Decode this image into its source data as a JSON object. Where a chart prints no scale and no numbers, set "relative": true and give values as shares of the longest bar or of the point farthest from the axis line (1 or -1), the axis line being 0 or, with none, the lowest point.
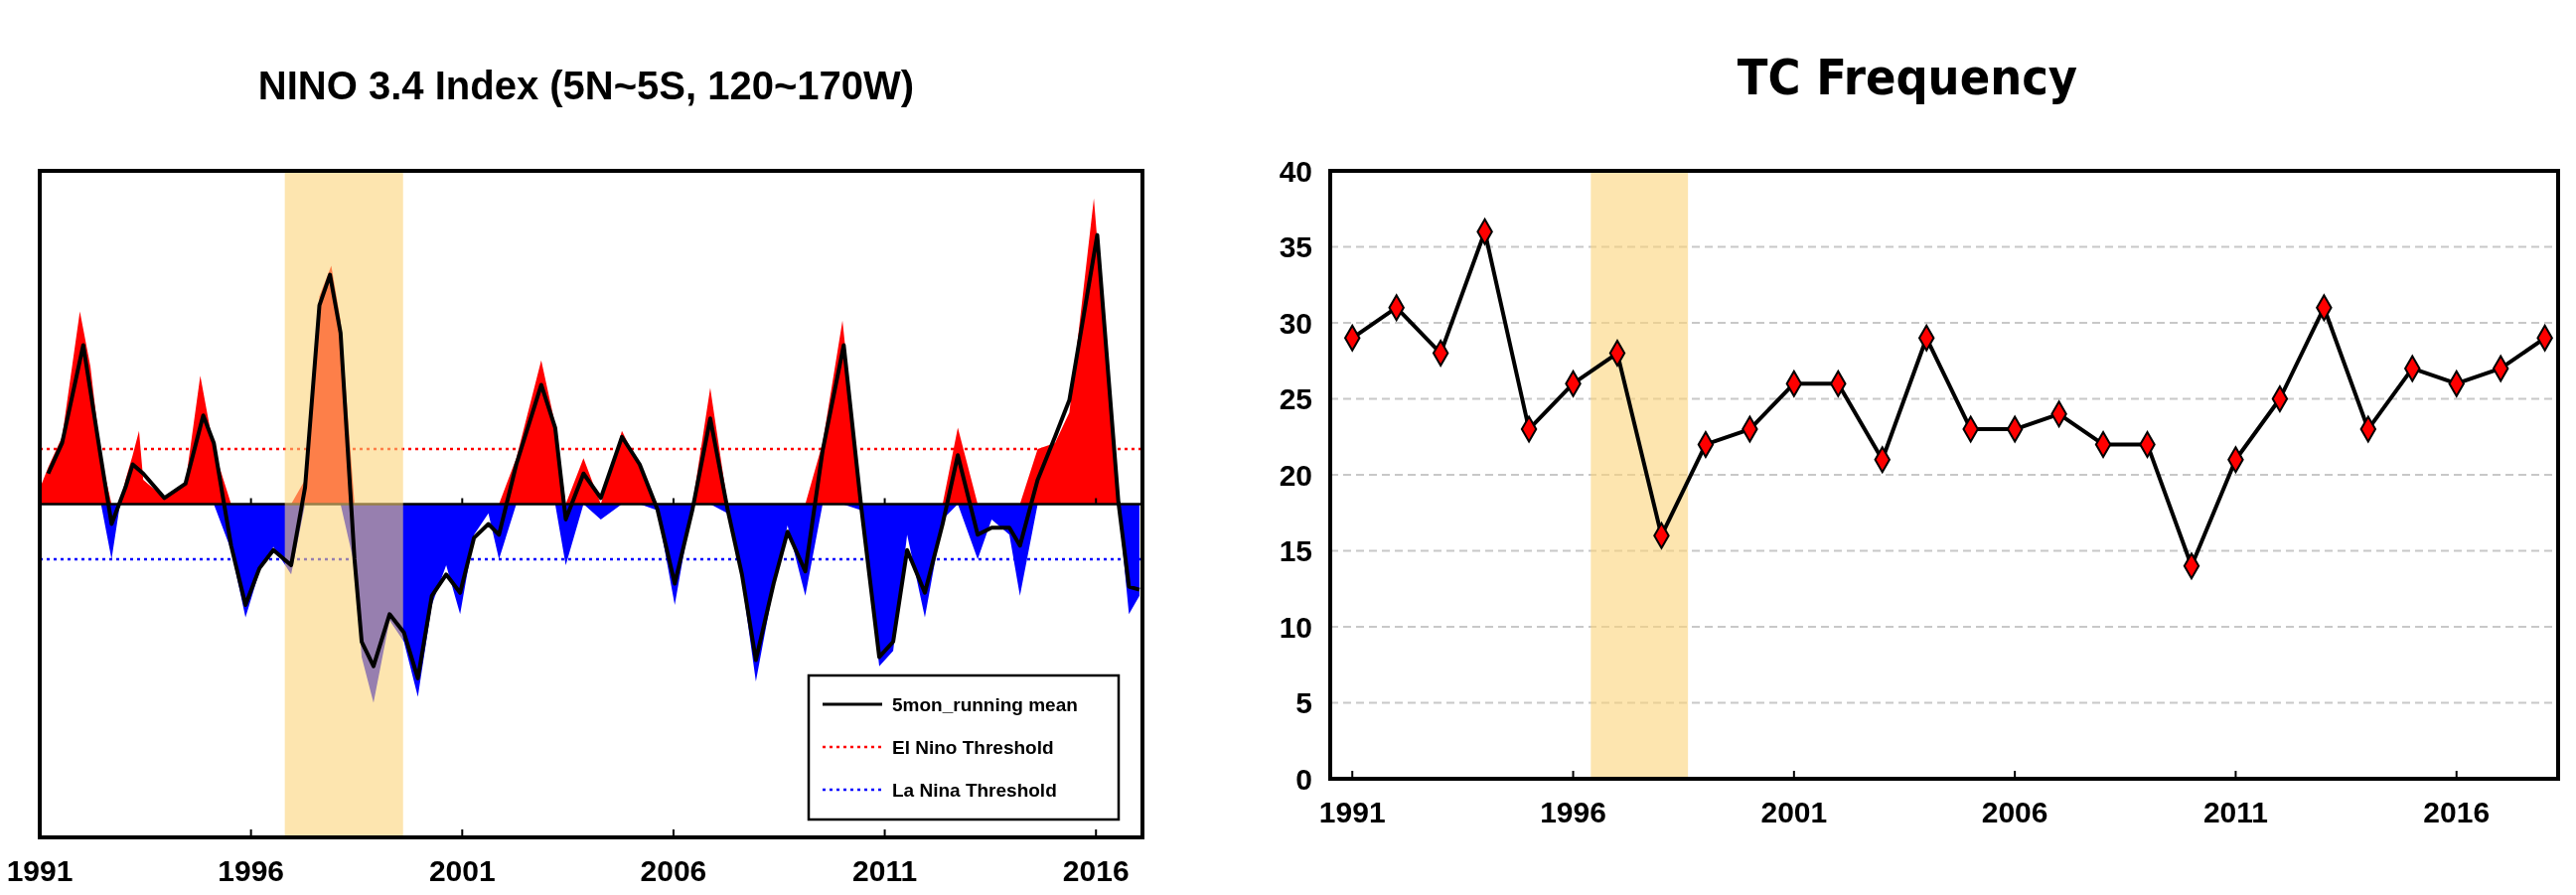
{
  "chart_data": [
    {
      "type": "area",
      "title": "NINO 3.4 Index (5N~5S, 120~170W)",
      "relative": true,
      "xlim": [
        1991,
        2017.1
      ],
      "xticks": [
        1991,
        1996,
        2001,
        2006,
        2011,
        2016
      ],
      "legend": "bottom right",
      "series": [
        {
          "color": "#ff0000",
          "x": [
            1991.0,
            1991.2,
            1991.53,
            1991.95,
            1992.2,
            1992.45,
            1992.7,
            1992.9,
            1993.03,
            1993.2,
            1993.35,
            1993.45,
            1993.95,
            1994.45,
            1994.8,
            1995.12,
            1995.53,
            1995.87,
            1996.2,
            1996.53,
            1996.95,
            1997.28,
            1997.62,
            1997.9,
            1998.12,
            1998.45,
            1998.62,
            1998.9,
            1999.28,
            1999.62,
            1999.95,
            2000.28,
            2000.62,
            2000.95,
            2001.28,
            2001.62,
            2001.87,
            2002.28,
            2002.87,
            2003.2,
            2003.45,
            2003.87,
            2004.28,
            2004.78,
            2005.2,
            2005.62,
            2006.03,
            2006.45,
            2006.87,
            2007.28,
            2007.62,
            2007.95,
            2008.37,
            2008.7,
            2009.12,
            2009.53,
            2010.0,
            2010.45,
            2010.87,
            2011.2,
            2011.53,
            2011.95,
            2012.37,
            2012.73,
            2013.2,
            2013.53,
            2013.95,
            2014.2,
            2014.62,
            2015.03,
            2015.37,
            2015.95,
            2016.53,
            2016.78,
            2017.03
          ],
          "values": [
            0.05,
            0.12,
            0.22,
            0.63,
            0.45,
            0.15,
            0,
            0,
            0.08,
            0.16,
            0.24,
            0.08,
            0.02,
            0.07,
            0.42,
            0.18,
            0,
            0,
            0,
            0,
            0,
            0.08,
            0.68,
            0.78,
            0.6,
            0,
            0,
            0,
            0,
            0,
            0,
            0,
            0,
            0,
            0,
            0,
            0,
            0.15,
            0.47,
            0.26,
            0,
            0.15,
            0,
            0.24,
            0.12,
            0,
            0,
            0,
            0.38,
            0,
            0,
            0,
            0,
            0,
            0,
            0.2,
            0.6,
            0,
            0,
            0,
            0,
            0,
            0,
            0.25,
            0,
            0,
            0,
            0,
            0.18,
            0.2,
            0.3,
            1.0,
            0,
            0,
            0
          ]
        },
        {
          "color": "#0000ff",
          "x": [
            1991.0,
            1991.2,
            1991.53,
            1991.95,
            1992.2,
            1992.45,
            1992.7,
            1992.9,
            1993.03,
            1993.2,
            1993.35,
            1993.45,
            1993.95,
            1994.45,
            1994.8,
            1995.12,
            1995.53,
            1995.87,
            1996.2,
            1996.53,
            1996.95,
            1997.28,
            1997.62,
            1997.9,
            1998.12,
            1998.45,
            1998.62,
            1998.9,
            1999.28,
            1999.62,
            1999.95,
            2000.28,
            2000.62,
            2000.95,
            2001.28,
            2001.62,
            2001.87,
            2002.28,
            2002.87,
            2003.2,
            2003.45,
            2003.87,
            2004.28,
            2004.78,
            2005.2,
            2005.62,
            2006.03,
            2006.45,
            2006.87,
            2007.28,
            2007.62,
            2007.95,
            2008.37,
            2008.7,
            2009.12,
            2009.53,
            2010.0,
            2010.45,
            2010.87,
            2011.2,
            2011.53,
            2011.95,
            2012.37,
            2012.73,
            2013.2,
            2013.53,
            2013.95,
            2014.2,
            2014.62,
            2015.03,
            2015.37,
            2015.95,
            2016.53,
            2016.78,
            2017.03
          ],
          "values": [
            0,
            0,
            0,
            0,
            0,
            0,
            -0.18,
            0,
            0,
            0,
            0,
            0,
            0,
            0,
            0,
            0,
            -0.15,
            -0.37,
            -0.22,
            -0.14,
            -0.23,
            0,
            0,
            0,
            0,
            -0.2,
            -0.5,
            -0.65,
            -0.38,
            -0.45,
            -0.63,
            -0.33,
            -0.2,
            -0.36,
            -0.1,
            -0.03,
            -0.18,
            0,
            0,
            0,
            -0.2,
            0,
            -0.05,
            0,
            0,
            -0.02,
            -0.33,
            0,
            0,
            -0.03,
            -0.25,
            -0.58,
            -0.27,
            -0.07,
            -0.3,
            0,
            0,
            -0.02,
            -0.53,
            -0.48,
            -0.1,
            -0.37,
            -0.05,
            0,
            -0.18,
            -0.05,
            -0.1,
            -0.3,
            0,
            0,
            0,
            0,
            0,
            -0.36,
            -0.3
          ]
        },
        {
          "type": "line",
          "name": "5mon_running mean",
          "color": "#000000",
          "x": [
            1991.2,
            1991.53,
            1992.03,
            1992.45,
            1992.7,
            1993.03,
            1993.2,
            1993.45,
            1993.95,
            1994.45,
            1994.87,
            1995.12,
            1995.53,
            1995.87,
            1996.2,
            1996.53,
            1996.95,
            1997.28,
            1997.62,
            1997.87,
            1998.12,
            1998.45,
            1998.62,
            1998.9,
            1999.28,
            1999.62,
            1999.95,
            2000.28,
            2000.62,
            2000.95,
            2001.28,
            2001.62,
            2001.87,
            2002.28,
            2002.87,
            2003.2,
            2003.45,
            2003.87,
            2004.28,
            2004.78,
            2005.2,
            2005.62,
            2006.03,
            2006.45,
            2006.87,
            2007.28,
            2007.62,
            2007.95,
            2008.37,
            2008.7,
            2009.12,
            2009.53,
            2010.03,
            2010.45,
            2010.87,
            2011.2,
            2011.53,
            2011.95,
            2012.37,
            2012.73,
            2013.2,
            2013.53,
            2013.95,
            2014.2,
            2014.62,
            2015.03,
            2015.37,
            2016.03,
            2016.53,
            2016.78,
            2017.03
          ],
          "values": [
            0.1,
            0.2,
            0.52,
            0.15,
            -0.065,
            0.055,
            0.13,
            0.1,
            0.02,
            0.067,
            0.29,
            0.2,
            -0.136,
            -0.33,
            -0.21,
            -0.15,
            -0.2,
            0.055,
            0.65,
            0.75,
            0.56,
            -0.18,
            -0.45,
            -0.53,
            -0.36,
            -0.42,
            -0.57,
            -0.3,
            -0.23,
            -0.29,
            -0.11,
            -0.065,
            -0.1,
            0.13,
            0.39,
            0.25,
            -0.05,
            0.1,
            0.02,
            0.22,
            0.13,
            -0.017,
            -0.26,
            -0.017,
            0.28,
            -0.017,
            -0.23,
            -0.51,
            -0.26,
            -0.09,
            -0.22,
            0.175,
            0.52,
            -0.017,
            -0.5,
            -0.45,
            -0.15,
            -0.29,
            -0.065,
            0.16,
            -0.1,
            -0.077,
            -0.077,
            -0.136,
            0.08,
            0.22,
            0.34,
            0.88,
            0.007,
            -0.27,
            -0.28
          ]
        }
      ],
      "ref_lines": [
        {
          "axis": "y",
          "value": 0.18,
          "label": "El Nino Threshold",
          "color": "#ff0000",
          "line_style": "dotted"
        },
        {
          "axis": "y",
          "value": -0.18,
          "label": "La Nina Threshold",
          "color": "#0000ff",
          "line_style": "dotted"
        }
      ],
      "bands": [
        {
          "axis": "x",
          "from": 1996.8,
          "to": 1999.6,
          "color": "#fcd37a"
        }
      ]
    },
    {
      "type": "line",
      "title": "TC Frequency",
      "xlim": [
        1990.5,
        2018.3
      ],
      "xticks": [
        1991,
        1996,
        2001,
        2006,
        2011,
        2016
      ],
      "ylim": [
        0,
        40
      ],
      "yticks": [
        0,
        5,
        10,
        15,
        20,
        25,
        30,
        35,
        40
      ],
      "grid": "y",
      "series": [
        {
          "color": "#000000",
          "marker": "none",
          "x": [
            1991,
            1992,
            1993,
            1994,
            1995,
            1996,
            1997,
            1998,
            1999,
            2000,
            2001,
            2002,
            2003,
            2004,
            2005,
            2006,
            2007,
            2008,
            2009,
            2010,
            2011,
            2012,
            2013,
            2014,
            2015,
            2016,
            2017,
            2018
          ],
          "values": [
            29,
            31,
            28,
            36,
            23,
            26,
            28,
            16,
            22,
            23,
            26,
            26,
            21,
            29,
            23,
            23,
            24,
            22,
            22,
            14,
            21,
            25,
            31,
            23,
            27,
            26,
            27,
            29
          ]
        },
        {
          "type": "scatter",
          "color": "#ff0000",
          "marker": "diamond",
          "x": [
            1991,
            1992,
            1993,
            1994,
            1995,
            1996,
            1997,
            1998,
            1999,
            2000,
            2001,
            2002,
            2003,
            2004,
            2005,
            2006,
            2007,
            2008,
            2009,
            2010,
            2011,
            2012,
            2013,
            2014,
            2015,
            2016,
            2017,
            2018
          ],
          "values": [
            29,
            31,
            28,
            36,
            23,
            26,
            28,
            16,
            22,
            23,
            26,
            26,
            21,
            29,
            23,
            23,
            24,
            22,
            22,
            14,
            21,
            25,
            31,
            23,
            27,
            26,
            27,
            29
          ]
        }
      ],
      "bands": [
        {
          "axis": "x",
          "from": 1996.4,
          "to": 1998.6,
          "color": "#fcd37a"
        }
      ]
    }
  ]
}
